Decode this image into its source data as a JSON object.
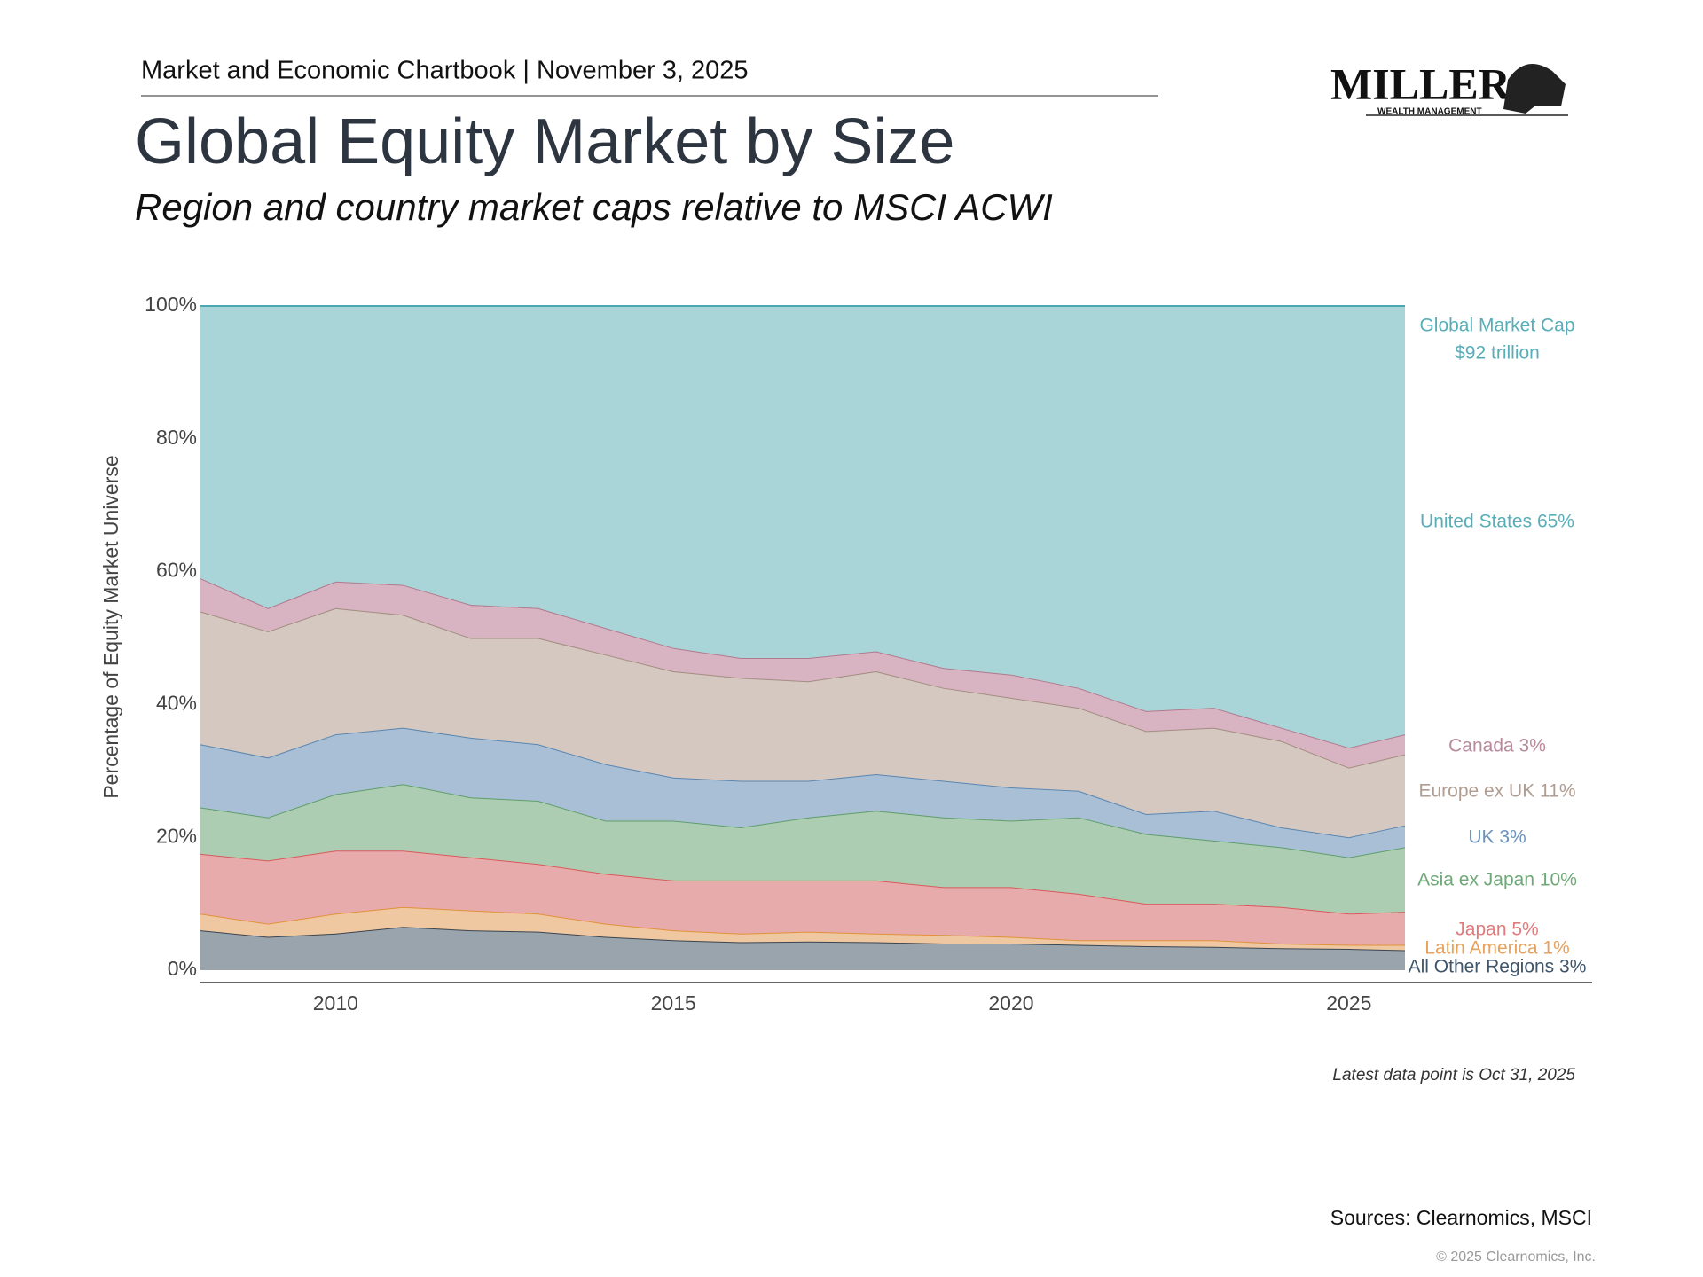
{
  "header": {
    "chartbook": "Market and Economic Chartbook | November 3, 2025",
    "logo": "MILLER",
    "logo_sub": "WEALTH MANAGEMENT"
  },
  "chart_data": {
    "type": "stacked-area",
    "title": "Global Equity Market by Size",
    "subtitle": "Region and country market caps relative to MSCI ACWI",
    "y_label": "Percentage of Equity Market Universe",
    "annotations": [
      "Global Market Cap",
      "$92 trillion"
    ],
    "note": "Latest data point is Oct 31, 2025",
    "source": "Sources: Clearnomics, MSCI",
    "copyright": "© 2025 Clearnomics, Inc.",
    "x": [
      2008,
      2009,
      2010,
      2011,
      2012,
      2013,
      2014,
      2015,
      2016,
      2017,
      2018,
      2019,
      2020,
      2021,
      2022,
      2023,
      2024,
      2025,
      2025.83
    ],
    "xlim": [
      2008,
      2028.6
    ],
    "xticks": [
      2010,
      2015,
      2020,
      2025
    ],
    "ylim": [
      0,
      100
    ],
    "yticks": [
      {
        "value": 0,
        "label": "0%"
      },
      {
        "value": 20,
        "label": "20%"
      },
      {
        "value": 40,
        "label": "40%"
      },
      {
        "value": 60,
        "label": "60%"
      },
      {
        "value": 80,
        "label": "80%"
      },
      {
        "value": 100,
        "label": "100%"
      }
    ],
    "series": [
      {
        "name": "All Other Regions 3%",
        "color": "#9aa4ad",
        "line": "#3a4550",
        "label_color": "#3f556b",
        "values": [
          6,
          5,
          5.5,
          6.5,
          6,
          5.8,
          5,
          4.5,
          4.2,
          4.3,
          4.2,
          4,
          4,
          3.8,
          3.6,
          3.5,
          3.3,
          3.2,
          3
        ]
      },
      {
        "name": "Latin America 1%",
        "color": "#efc7a0",
        "line": "#e0923a",
        "label_color": "#e8a15a",
        "values": [
          2.5,
          2,
          3,
          3,
          3,
          2.7,
          2,
          1.5,
          1.3,
          1.5,
          1.3,
          1.3,
          1,
          0.7,
          0.9,
          1,
          0.7,
          0.6,
          0.8
        ]
      },
      {
        "name": "Japan 5%",
        "color": "#e8abac",
        "line": "#d9595b",
        "label_color": "#e07b7c",
        "values": [
          9,
          9.5,
          9.5,
          8.5,
          8,
          7.5,
          7.5,
          7.5,
          8,
          7.7,
          8,
          7.2,
          7.5,
          7,
          5.5,
          5.5,
          5.5,
          4.7,
          5
        ]
      },
      {
        "name": "Asia ex Japan 10%",
        "color": "#adcdb3",
        "line": "#5f9e6a",
        "label_color": "#6fa878",
        "values": [
          7,
          6.5,
          8.5,
          10,
          9,
          9.5,
          8,
          9,
          8,
          9.5,
          10.5,
          10.5,
          10,
          11.5,
          10.5,
          9.5,
          9,
          8.5,
          9.7
        ]
      },
      {
        "name": "UK 3%",
        "color": "#a8bfd5",
        "line": "#5b86b0",
        "label_color": "#6b93bb",
        "values": [
          9.5,
          9,
          9,
          8.5,
          9,
          8.5,
          8.5,
          6.5,
          7,
          5.5,
          5.5,
          5.5,
          5,
          4,
          3,
          4.5,
          3,
          3,
          3.3
        ]
      },
      {
        "name": "Europe ex UK 11%",
        "color": "#d4c8c1",
        "line": "#a38d80",
        "label_color": "#b09d92",
        "values": [
          20,
          19,
          19,
          17,
          15,
          16,
          16.5,
          16,
          15.5,
          15,
          15.5,
          14,
          13.5,
          12.5,
          12.5,
          12.5,
          13,
          10.5,
          10.7
        ]
      },
      {
        "name": "Canada 3%",
        "color": "#d8b3c2",
        "line": "#b07a8e",
        "label_color": "#b88a9c",
        "values": [
          5,
          3.5,
          4,
          4.5,
          5,
          4.5,
          4,
          3.5,
          3,
          3.5,
          3,
          3,
          3.5,
          3,
          3,
          3,
          2,
          3,
          3
        ]
      },
      {
        "name": "United States 65%",
        "color": "#a9d5d8",
        "line": "#4aa8b3",
        "label_color": "#58aeb8",
        "values": [
          41,
          45.5,
          41.5,
          42,
          45,
          45.5,
          48.5,
          51.5,
          53,
          53,
          52,
          54.5,
          55.5,
          57.5,
          61,
          60.5,
          63.5,
          66.5,
          64.5
        ]
      }
    ]
  }
}
